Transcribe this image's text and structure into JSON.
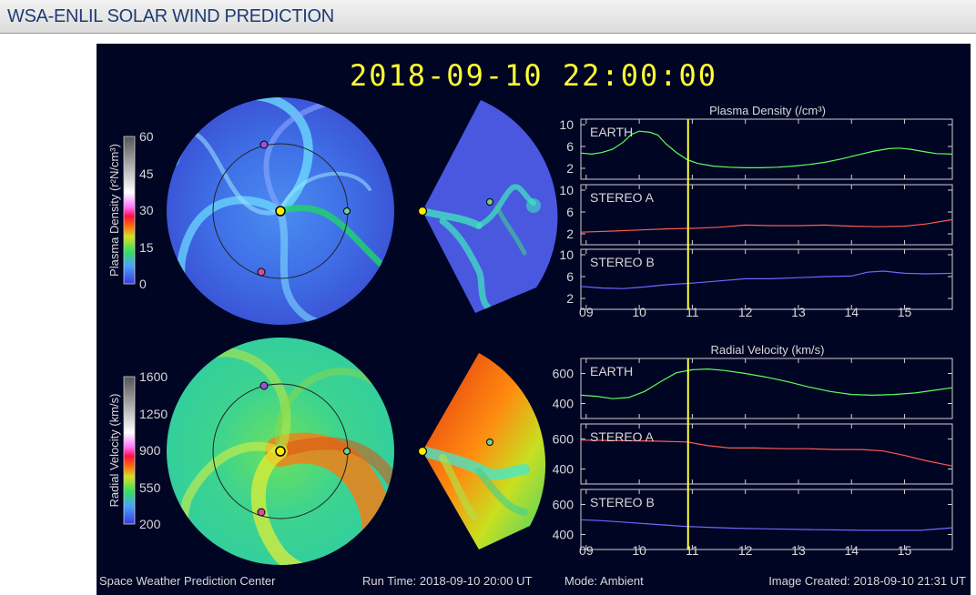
{
  "page": {
    "title": "WSA-ENLIL SOLAR WIND PREDICTION"
  },
  "colors": {
    "panel_bg": "#000524",
    "cursor": "#ffff33",
    "earth": "#5dff5d",
    "stereo_a": "#ff5a50",
    "stereo_b": "#6a6aff",
    "header_text": "#1f3b73"
  },
  "timestamp": "2018-09-10 22:00:00",
  "density_colorbar": {
    "label": "Plasma Density (r²N/cm³)",
    "ticks": [
      "60",
      "45",
      "30",
      "15",
      "0"
    ]
  },
  "velocity_colorbar": {
    "label": "Radial Velocity (km/s)",
    "ticks": [
      "1600",
      "1250",
      "900",
      "550",
      "200"
    ]
  },
  "footer": {
    "left": "Space Weather Prediction Center",
    "run_time": "Run Time: 2018-09-10 20:00 UT",
    "mode": "Mode: Ambient",
    "created": "Image Created: 2018-09-10 21:31 UT"
  },
  "chart_data": [
    {
      "type": "line",
      "title": "Plasma Density (/cm³)",
      "x_ticks": [
        "09",
        "10",
        "11",
        "12",
        "13",
        "14",
        "15"
      ],
      "xlim": [
        8.9,
        15.9
      ],
      "cursor_x": 10.92,
      "panels": [
        {
          "label": "EARTH",
          "ylim": [
            0,
            11
          ],
          "y_ticks": [
            "10",
            "6",
            "2"
          ],
          "y_tick_values": [
            10,
            6,
            2
          ],
          "color": "#5dff5d",
          "x": [
            8.9,
            9.1,
            9.3,
            9.5,
            9.7,
            9.85,
            10.0,
            10.2,
            10.35,
            10.5,
            10.7,
            10.9,
            11.1,
            11.4,
            11.7,
            12.0,
            12.3,
            12.6,
            12.9,
            13.2,
            13.5,
            13.8,
            14.1,
            14.4,
            14.7,
            14.9,
            15.1,
            15.4,
            15.6,
            15.9
          ],
          "y": [
            4.8,
            4.6,
            4.9,
            5.5,
            6.8,
            8.2,
            8.8,
            8.6,
            8.1,
            6.5,
            4.9,
            3.6,
            2.9,
            2.4,
            2.2,
            2.1,
            2.1,
            2.2,
            2.4,
            2.7,
            3.1,
            3.7,
            4.4,
            5.1,
            5.6,
            5.7,
            5.5,
            5.0,
            4.7,
            4.6
          ]
        },
        {
          "label": "STEREO A",
          "ylim": [
            0,
            11
          ],
          "y_ticks": [
            "10",
            "6",
            "2"
          ],
          "y_tick_values": [
            10,
            6,
            2
          ],
          "color": "#ff5a50",
          "x": [
            8.9,
            9.5,
            10.0,
            10.5,
            11.0,
            11.5,
            12.0,
            12.5,
            13.0,
            13.5,
            14.0,
            14.5,
            15.0,
            15.4,
            15.9
          ],
          "y": [
            2.3,
            2.5,
            2.7,
            2.9,
            3.0,
            3.2,
            3.6,
            3.5,
            3.5,
            3.6,
            3.4,
            3.3,
            3.4,
            3.8,
            4.6
          ]
        },
        {
          "label": "STEREO B",
          "ylim": [
            0,
            11
          ],
          "y_ticks": [
            "10",
            "6",
            "2"
          ],
          "y_tick_values": [
            10,
            6,
            2
          ],
          "color": "#6a6aff",
          "x": [
            8.9,
            9.3,
            9.7,
            10.1,
            10.5,
            11.0,
            11.5,
            12.0,
            12.5,
            13.0,
            13.5,
            14.0,
            14.3,
            14.6,
            15.0,
            15.4,
            15.9
          ],
          "y": [
            4.2,
            3.9,
            3.8,
            4.1,
            4.5,
            4.8,
            5.2,
            5.6,
            5.6,
            5.8,
            6.0,
            6.1,
            6.8,
            7.0,
            6.6,
            6.5,
            6.6
          ]
        }
      ]
    },
    {
      "type": "line",
      "title": "Radial Velocity (km/s)",
      "x_ticks": [
        "09",
        "10",
        "11",
        "12",
        "13",
        "14",
        "15"
      ],
      "xlim": [
        8.9,
        15.9
      ],
      "cursor_x": 10.92,
      "panels": [
        {
          "label": "EARTH",
          "ylim": [
            300,
            700
          ],
          "y_ticks": [
            "600",
            "400"
          ],
          "y_tick_values": [
            600,
            400
          ],
          "color": "#5dff5d",
          "x": [
            8.9,
            9.2,
            9.5,
            9.8,
            10.1,
            10.4,
            10.7,
            11.0,
            11.3,
            11.6,
            12.0,
            12.4,
            12.8,
            13.2,
            13.6,
            14.0,
            14.4,
            14.8,
            15.2,
            15.6,
            15.9
          ],
          "y": [
            455,
            448,
            432,
            440,
            480,
            545,
            605,
            625,
            630,
            620,
            600,
            575,
            545,
            510,
            480,
            460,
            455,
            460,
            470,
            490,
            505
          ]
        },
        {
          "label": "STEREO A",
          "ylim": [
            300,
            700
          ],
          "y_ticks": [
            "600",
            "400"
          ],
          "y_tick_values": [
            600,
            400
          ],
          "color": "#ff5a50",
          "x": [
            8.9,
            9.4,
            9.9,
            10.4,
            10.9,
            11.3,
            11.7,
            12.2,
            12.7,
            13.2,
            13.7,
            14.2,
            14.6,
            15.0,
            15.4,
            15.9
          ],
          "y": [
            592,
            590,
            588,
            585,
            580,
            555,
            540,
            540,
            535,
            535,
            530,
            530,
            520,
            490,
            455,
            420
          ]
        },
        {
          "label": "STEREO B",
          "ylim": [
            300,
            700
          ],
          "y_ticks": [
            "600",
            "400"
          ],
          "y_tick_values": [
            600,
            400
          ],
          "color": "#6a6aff",
          "x": [
            8.9,
            9.3,
            9.8,
            10.3,
            10.8,
            11.3,
            11.8,
            12.3,
            12.8,
            13.3,
            13.8,
            14.3,
            14.8,
            15.3,
            15.9
          ],
          "y": [
            498,
            492,
            480,
            467,
            455,
            448,
            442,
            438,
            435,
            432,
            430,
            428,
            428,
            428,
            445
          ]
        }
      ]
    }
  ]
}
